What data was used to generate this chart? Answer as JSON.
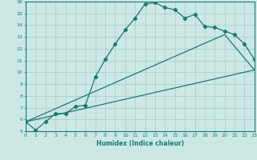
{
  "xlabel": "Humidex (Indice chaleur)",
  "ylabel": "",
  "bg_color": "#cce8e4",
  "grid_color": "#aacfca",
  "line_color": "#1a7a6e",
  "xlim": [
    0,
    23
  ],
  "ylim": [
    5,
    16
  ],
  "xticks": [
    0,
    1,
    2,
    3,
    4,
    5,
    6,
    7,
    8,
    9,
    10,
    11,
    12,
    13,
    14,
    15,
    16,
    17,
    18,
    19,
    20,
    21,
    22,
    23
  ],
  "yticks": [
    5,
    6,
    7,
    8,
    9,
    10,
    11,
    12,
    13,
    14,
    15,
    16
  ],
  "series1_x": [
    0,
    1,
    2,
    3,
    4,
    5,
    6,
    7,
    8,
    9,
    10,
    11,
    12,
    13,
    14,
    15,
    16,
    17,
    18,
    19,
    20,
    21,
    22,
    23
  ],
  "series1_y": [
    5.8,
    5.1,
    5.8,
    6.5,
    6.5,
    7.1,
    7.2,
    9.6,
    11.1,
    12.4,
    13.6,
    14.6,
    15.8,
    15.9,
    15.5,
    15.3,
    14.6,
    14.9,
    13.9,
    13.8,
    13.5,
    13.2,
    12.4,
    11.1
  ],
  "series2_x": [
    0,
    23
  ],
  "series2_y": [
    5.8,
    10.2
  ],
  "series3_x": [
    0,
    20,
    23
  ],
  "series3_y": [
    5.8,
    13.2,
    10.2
  ]
}
